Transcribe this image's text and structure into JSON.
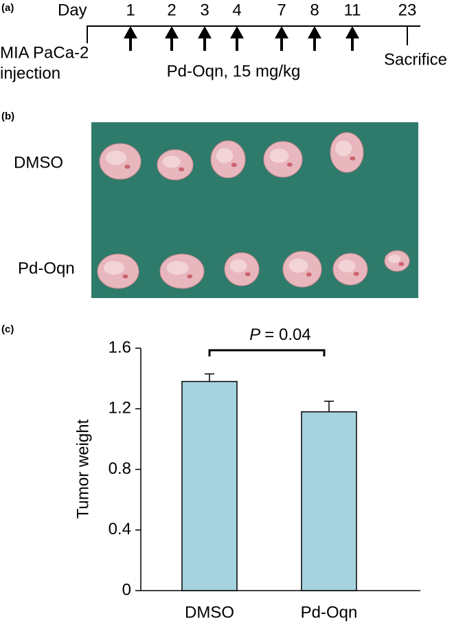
{
  "panel_a": {
    "label": "(a)",
    "day_label": "Day",
    "days": [
      1,
      2,
      3,
      4,
      7,
      8,
      11,
      23
    ],
    "start_label": [
      "MIA PaCa-2",
      "injection"
    ],
    "treatment": "Pd-Oqn, 15 mg/kg",
    "end_label": "Sacrifice"
  },
  "panel_b": {
    "label": "(b)",
    "rows": [
      "DMSO",
      "Pd-Oqn"
    ]
  },
  "chart_data": {
    "type": "bar",
    "panel_label": "(c)",
    "ylabel": "Tumor weight",
    "categories": [
      "DMSO",
      "Pd-Oqn"
    ],
    "values": [
      1.38,
      1.18
    ],
    "errors": [
      0.05,
      0.07
    ],
    "color": "#a6d3e0",
    "ylim": [
      0,
      1.6
    ],
    "yticks": [
      0,
      0.4,
      0.8,
      1.2,
      1.6
    ],
    "significance": {
      "symbol": "P",
      "text": "= 0.04"
    }
  }
}
